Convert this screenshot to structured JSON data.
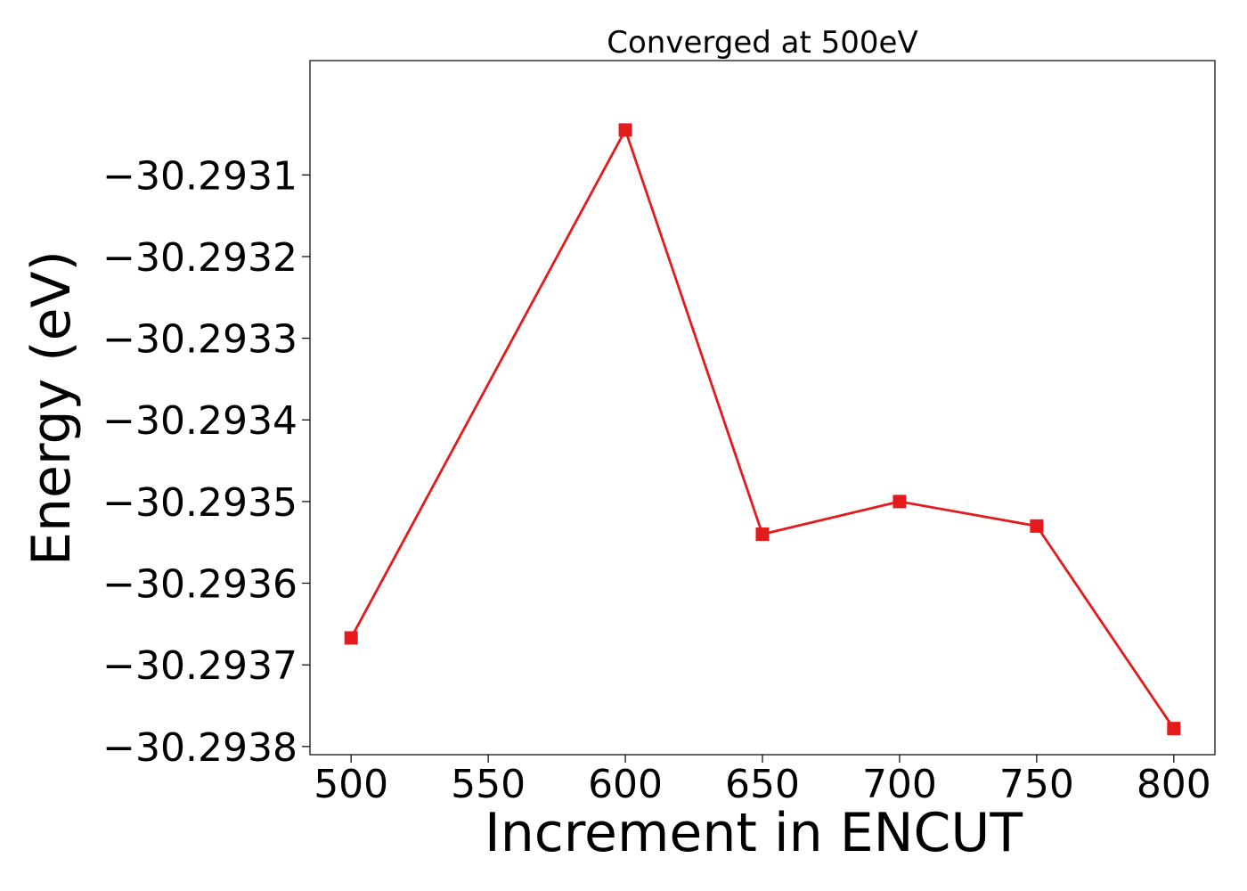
{
  "chart_data": {
    "type": "line",
    "title": "Converged at 500eV",
    "xlabel": "Increment in ENCUT",
    "ylabel": "Energy (eV)",
    "xlim": [
      485,
      815
    ],
    "ylim": [
      -30.29381,
      -30.29296
    ],
    "x_ticks": [
      500,
      550,
      600,
      650,
      700,
      750,
      800
    ],
    "x_tick_labels": [
      "500",
      "550",
      "600",
      "650",
      "700",
      "750",
      "800"
    ],
    "y_ticks": [
      -30.2931,
      -30.2932,
      -30.2933,
      -30.2934,
      -30.2935,
      -30.2936,
      -30.2937,
      -30.2938
    ],
    "y_tick_labels": [
      "−30.2931",
      "−30.2932",
      "−30.2933",
      "−30.2934",
      "−30.2935",
      "−30.2936",
      "−30.2937",
      "−30.2938"
    ],
    "grid": false,
    "series": [
      {
        "x": [
          500,
          600,
          650,
          700,
          750,
          800
        ],
        "y": [
          -30.293667,
          -30.293045,
          -30.29354,
          -30.2935,
          -30.29353,
          -30.293778
        ],
        "color": "#e41a1c",
        "marker": "square"
      }
    ]
  }
}
